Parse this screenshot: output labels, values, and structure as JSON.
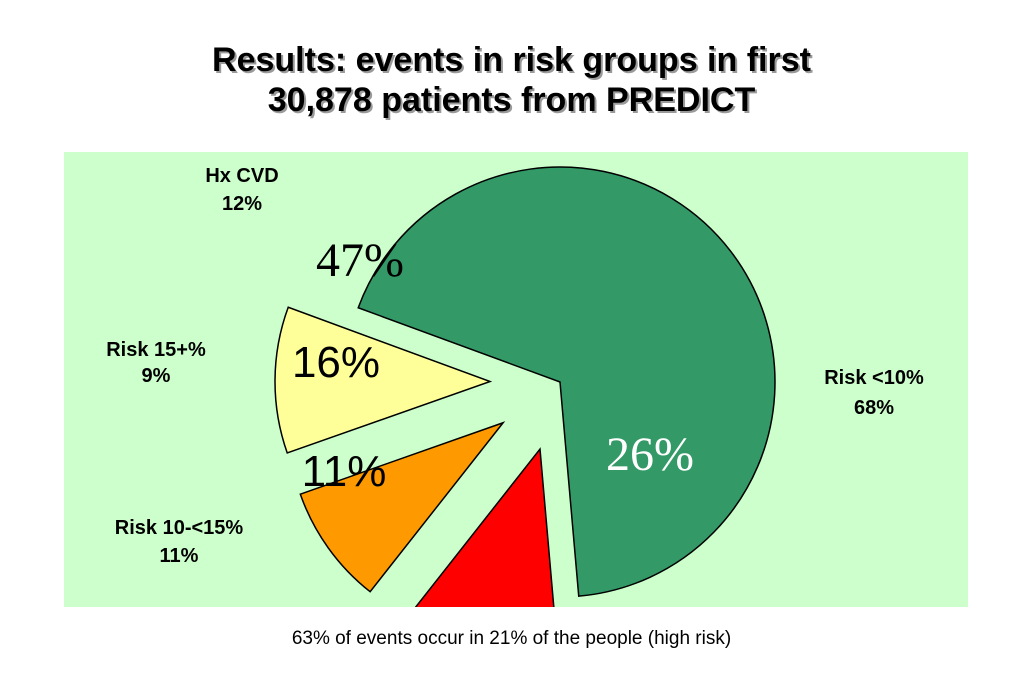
{
  "title": {
    "line1": "Results:  events in risk groups in first",
    "line2": "30,878 patients from PREDICT"
  },
  "footnote": "63% of events occur in 21% of the people (high risk)",
  "chart_data": {
    "type": "pie",
    "title": "Results:  events in risk groups in first 30,878 patients from PREDICT",
    "background_color": "#ccffcc",
    "slices": [
      {
        "label": "Hx CVD",
        "share_label": "12%",
        "share": 12,
        "events_label": "47%",
        "events": 47,
        "color": "#ff0000",
        "exploded": true
      },
      {
        "label": "Risk 15+%",
        "share_label": "9%",
        "share": 9,
        "events_label": "16%",
        "events": 16,
        "color": "#ff9900",
        "exploded": true
      },
      {
        "label": "Risk 10-<15%",
        "share_label": "11%",
        "share": 11,
        "events_label": "11%",
        "events": 11,
        "color": "#ffff99",
        "exploded": true
      },
      {
        "label": "Risk <10%",
        "share_label": "68%",
        "share": 68,
        "events_label": "26%",
        "events": 26,
        "color": "#339966",
        "exploded": false
      }
    ]
  }
}
